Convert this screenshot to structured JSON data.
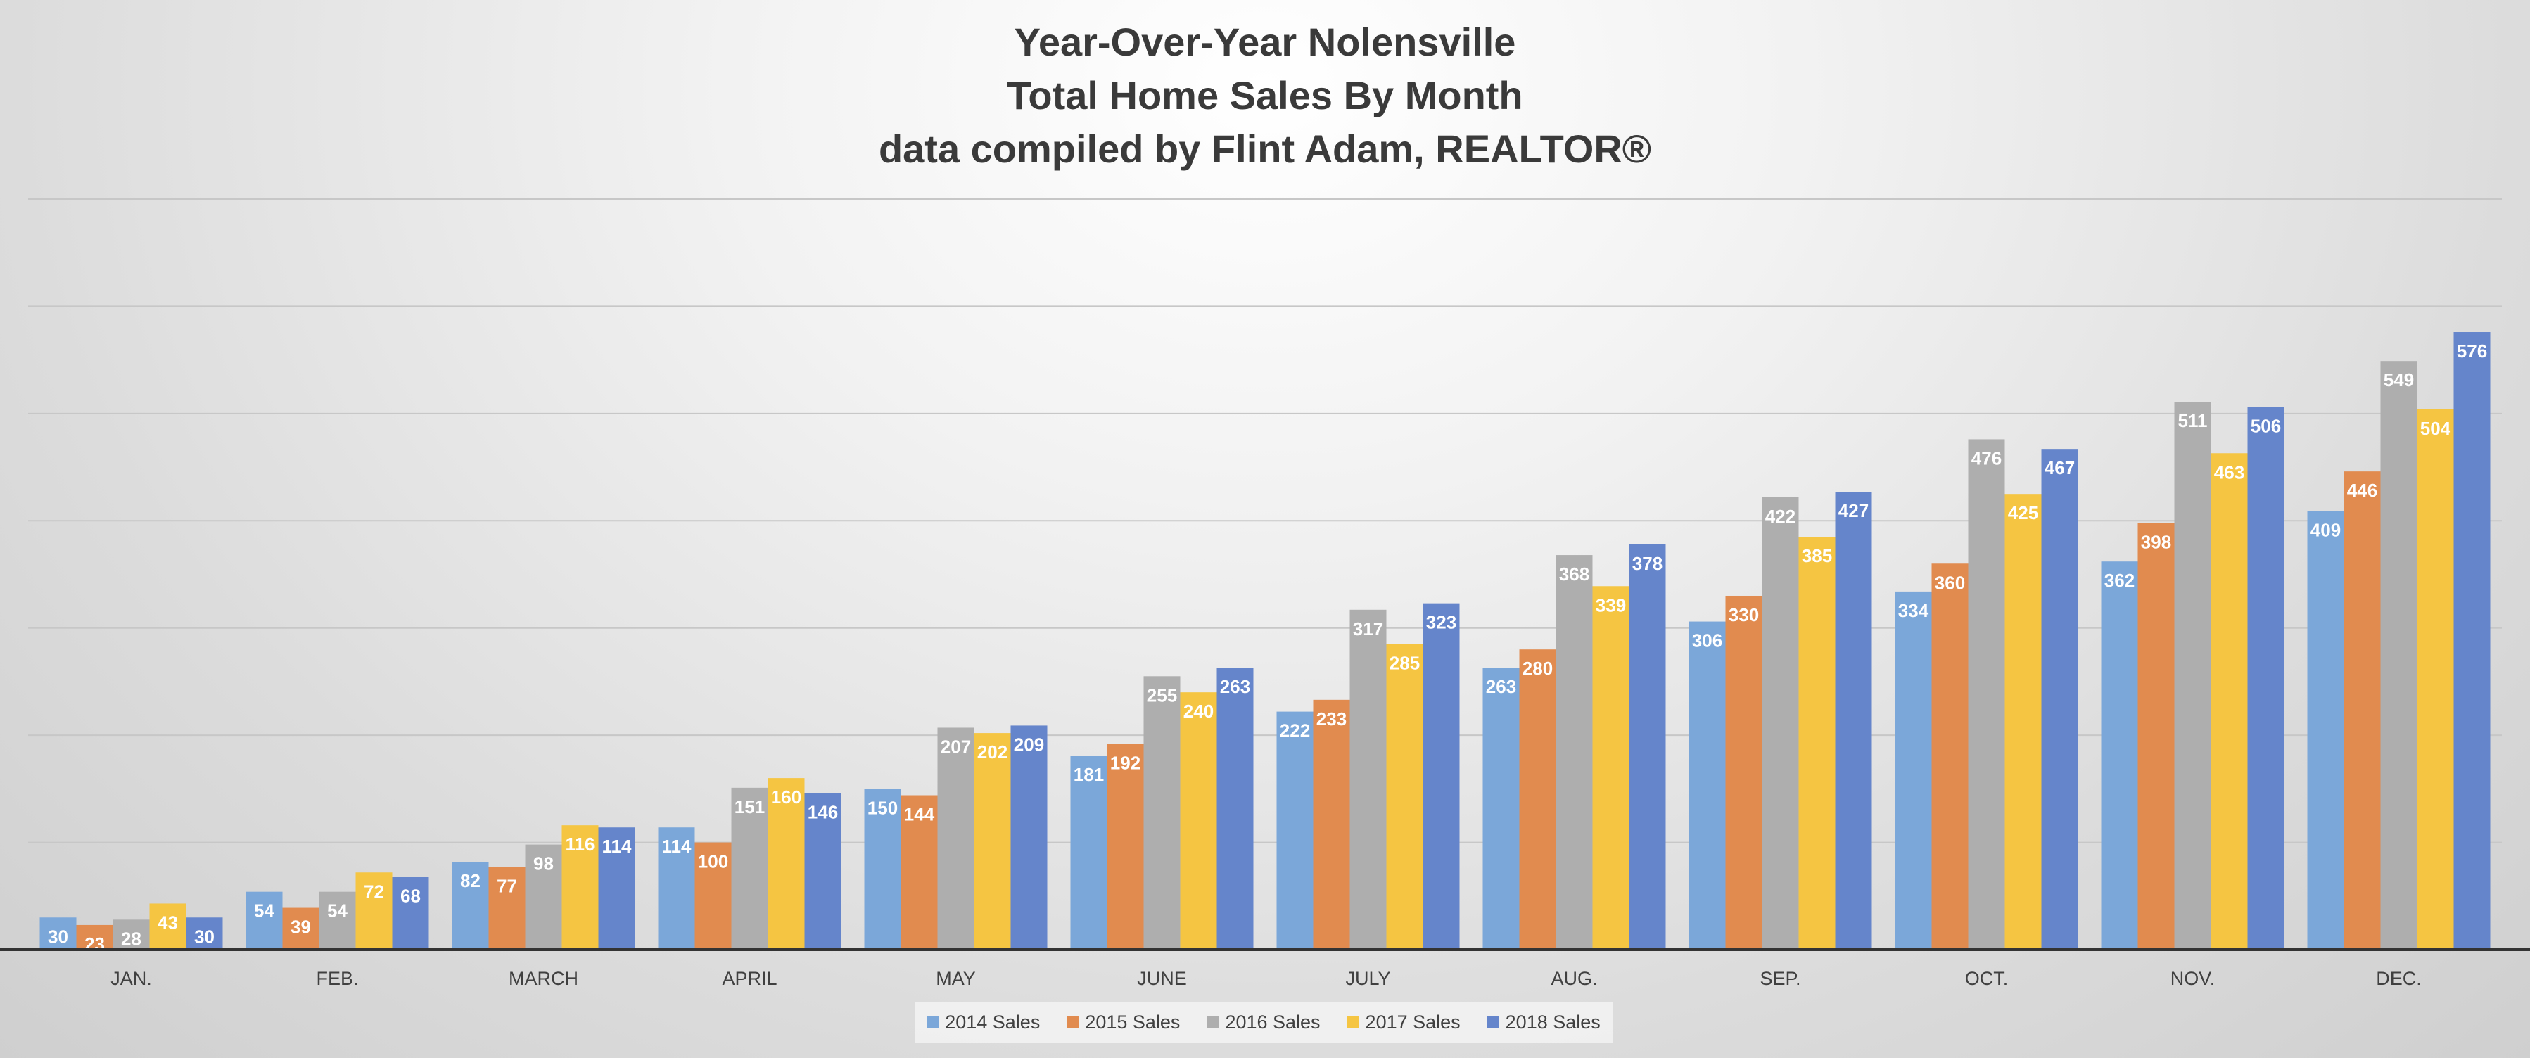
{
  "colors": {
    "series": [
      "#7ba7d9",
      "#e18b4f",
      "#aeaeae",
      "#f5c542",
      "#6585cb"
    ],
    "bar_label": "#ffffff",
    "axis": "#333333",
    "grid": "#c7c7c7"
  },
  "chart_data": {
    "type": "bar",
    "title": [
      "Year-Over-Year Nolensville",
      "Total Home Sales By Month",
      "data compiled by Flint Adam, REALTOR®"
    ],
    "xlabel": "",
    "ylabel": "",
    "ylim": [
      0,
      700
    ],
    "grid": true,
    "legend_position": "bottom",
    "categories": [
      "JAN.",
      "FEB.",
      "MARCH",
      "APRIL",
      "MAY",
      "JUNE",
      "JULY",
      "AUG.",
      "SEP.",
      "OCT.",
      "NOV.",
      "DEC."
    ],
    "series": [
      {
        "name": "2014 Sales",
        "values": [
          30,
          54,
          82,
          114,
          150,
          181,
          222,
          263,
          306,
          334,
          362,
          409
        ]
      },
      {
        "name": "2015 Sales",
        "values": [
          23,
          39,
          77,
          100,
          144,
          192,
          233,
          280,
          330,
          360,
          398,
          446
        ]
      },
      {
        "name": "2016 Sales",
        "values": [
          28,
          54,
          98,
          151,
          207,
          255,
          317,
          368,
          422,
          476,
          511,
          549
        ]
      },
      {
        "name": "2017 Sales",
        "values": [
          43,
          72,
          116,
          160,
          202,
          240,
          285,
          339,
          385,
          425,
          463,
          504
        ]
      },
      {
        "name": "2018 Sales",
        "values": [
          30,
          68,
          114,
          146,
          209,
          263,
          323,
          378,
          427,
          467,
          506,
          576
        ]
      }
    ]
  }
}
